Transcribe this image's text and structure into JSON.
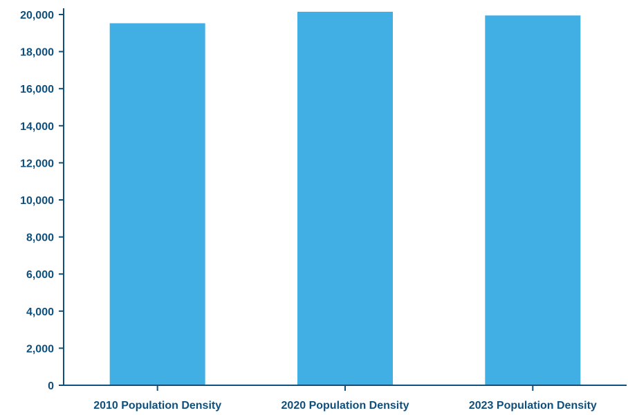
{
  "chart_data": {
    "type": "bar",
    "title": "",
    "xlabel": "",
    "ylabel": "",
    "categories": [
      "2010 Population Density",
      "2020 Population Density",
      "2023 Population Density"
    ],
    "values": [
      19530,
      20150,
      19950
    ],
    "ylim": [
      0,
      20000
    ],
    "yticks": [
      0,
      2000,
      4000,
      6000,
      8000,
      10000,
      12000,
      14000,
      16000,
      18000,
      20000
    ],
    "ytick_labels": [
      "0",
      "2,000",
      "4,000",
      "6,000",
      "8,000",
      "10,000",
      "12,000",
      "14,000",
      "16,000",
      "18,000",
      "20,000"
    ],
    "grid": false,
    "legend": "none"
  },
  "colors": {
    "bar": "#41afe4",
    "axis": "#0e4f7c",
    "text": "#0e4f7c",
    "background": "#ffffff"
  }
}
